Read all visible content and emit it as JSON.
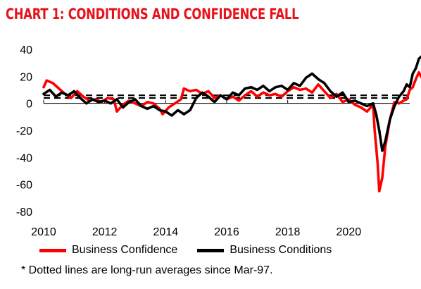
{
  "title": "CHART 1: CONDITIONS AND CONFIDENCE FALL",
  "footnote": "* Dotted lines are long-run averages since Mar-97.",
  "chart_data": {
    "type": "line",
    "title": "CHART 1: CONDITIONS AND CONFIDENCE FALL",
    "xlabel": "",
    "ylabel": "",
    "xlim": [
      2010,
      2022
    ],
    "ylim": [
      -80,
      40
    ],
    "x_ticks": [
      "2010",
      "2012",
      "2014",
      "2016",
      "2018",
      "2020"
    ],
    "y_ticks": [
      "40",
      "20",
      "0",
      "-20",
      "-40",
      "-60",
      "-80"
    ],
    "grid": false,
    "legend_position": "bottom",
    "series": [
      {
        "name": "Business Confidence",
        "color": "#ff0000",
        "points": [
          [
            2010.0,
            12
          ],
          [
            2010.1,
            17
          ],
          [
            2010.3,
            15
          ],
          [
            2010.5,
            11
          ],
          [
            2010.7,
            7
          ],
          [
            2010.9,
            4
          ],
          [
            2011.1,
            9
          ],
          [
            2011.3,
            5
          ],
          [
            2011.5,
            2
          ],
          [
            2011.7,
            3
          ],
          [
            2011.9,
            1
          ],
          [
            2012.1,
            4
          ],
          [
            2012.3,
            3
          ],
          [
            2012.4,
            -6
          ],
          [
            2012.6,
            -1
          ],
          [
            2012.8,
            2
          ],
          [
            2013.0,
            0
          ],
          [
            2013.2,
            -2
          ],
          [
            2013.4,
            1
          ],
          [
            2013.6,
            0
          ],
          [
            2013.8,
            -4
          ],
          [
            2013.9,
            -8
          ],
          [
            2014.1,
            -3
          ],
          [
            2014.3,
            0
          ],
          [
            2014.5,
            3
          ],
          [
            2014.6,
            11
          ],
          [
            2014.8,
            9
          ],
          [
            2015.0,
            10
          ],
          [
            2015.2,
            7
          ],
          [
            2015.4,
            9
          ],
          [
            2015.6,
            4
          ],
          [
            2015.8,
            6
          ],
          [
            2016.0,
            3
          ],
          [
            2016.2,
            5
          ],
          [
            2016.4,
            2
          ],
          [
            2016.6,
            6
          ],
          [
            2016.8,
            9
          ],
          [
            2017.0,
            5
          ],
          [
            2017.2,
            8
          ],
          [
            2017.4,
            6
          ],
          [
            2017.6,
            7
          ],
          [
            2017.8,
            5
          ],
          [
            2018.0,
            9
          ],
          [
            2018.2,
            12
          ],
          [
            2018.4,
            10
          ],
          [
            2018.6,
            11
          ],
          [
            2018.8,
            8
          ],
          [
            2019.0,
            14
          ],
          [
            2019.2,
            9
          ],
          [
            2019.4,
            4
          ],
          [
            2019.6,
            7
          ],
          [
            2019.8,
            1
          ],
          [
            2020.0,
            3
          ],
          [
            2020.2,
            -1
          ],
          [
            2020.4,
            -3
          ],
          [
            2020.6,
            -6
          ],
          [
            2020.8,
            -1
          ],
          [
            2020.85,
            -20
          ],
          [
            2020.95,
            -45
          ],
          [
            2021.0,
            -65
          ],
          [
            2021.1,
            -55
          ],
          [
            2021.2,
            -32
          ],
          [
            2021.35,
            -12
          ],
          [
            2021.5,
            1
          ],
          [
            2021.65,
            0
          ],
          [
            2021.8,
            2
          ],
          [
            2021.9,
            3
          ],
          [
            2022.0,
            10
          ],
          [
            2022.1,
            12
          ],
          [
            2022.2,
            18
          ],
          [
            2022.3,
            23
          ],
          [
            2022.4,
            19
          ],
          [
            2022.5,
            11
          ]
        ]
      },
      {
        "name": "Business Conditions",
        "color": "#000000",
        "points": [
          [
            2010.0,
            7
          ],
          [
            2010.2,
            10
          ],
          [
            2010.4,
            5
          ],
          [
            2010.6,
            8
          ],
          [
            2010.8,
            6
          ],
          [
            2011.0,
            9
          ],
          [
            2011.2,
            4
          ],
          [
            2011.4,
            0
          ],
          [
            2011.6,
            3
          ],
          [
            2011.8,
            1
          ],
          [
            2012.0,
            2
          ],
          [
            2012.2,
            0
          ],
          [
            2012.4,
            3
          ],
          [
            2012.6,
            -3
          ],
          [
            2012.8,
            1
          ],
          [
            2013.0,
            3
          ],
          [
            2013.2,
            -2
          ],
          [
            2013.4,
            -4
          ],
          [
            2013.6,
            -2
          ],
          [
            2013.8,
            -5
          ],
          [
            2014.0,
            -6
          ],
          [
            2014.2,
            -9
          ],
          [
            2014.4,
            -5
          ],
          [
            2014.6,
            -8
          ],
          [
            2014.8,
            -5
          ],
          [
            2015.0,
            4
          ],
          [
            2015.2,
            8
          ],
          [
            2015.4,
            5
          ],
          [
            2015.6,
            1
          ],
          [
            2015.8,
            6
          ],
          [
            2016.0,
            3
          ],
          [
            2016.2,
            8
          ],
          [
            2016.4,
            6
          ],
          [
            2016.6,
            11
          ],
          [
            2016.8,
            12
          ],
          [
            2017.0,
            10
          ],
          [
            2017.2,
            13
          ],
          [
            2017.4,
            9
          ],
          [
            2017.6,
            12
          ],
          [
            2017.8,
            13
          ],
          [
            2018.0,
            10
          ],
          [
            2018.2,
            15
          ],
          [
            2018.4,
            13
          ],
          [
            2018.6,
            19
          ],
          [
            2018.8,
            22
          ],
          [
            2019.0,
            18
          ],
          [
            2019.2,
            15
          ],
          [
            2019.4,
            9
          ],
          [
            2019.6,
            5
          ],
          [
            2019.8,
            8
          ],
          [
            2020.0,
            1
          ],
          [
            2020.2,
            2
          ],
          [
            2020.4,
            0
          ],
          [
            2020.6,
            -2
          ],
          [
            2020.8,
            0
          ],
          [
            2020.9,
            -8
          ],
          [
            2021.0,
            -20
          ],
          [
            2021.1,
            -35
          ],
          [
            2021.2,
            -28
          ],
          [
            2021.35,
            -12
          ],
          [
            2021.5,
            -2
          ],
          [
            2021.65,
            5
          ],
          [
            2021.8,
            9
          ],
          [
            2021.9,
            14
          ],
          [
            2022.0,
            12
          ],
          [
            2022.1,
            22
          ],
          [
            2022.2,
            26
          ],
          [
            2022.3,
            33
          ],
          [
            2022.4,
            35
          ],
          [
            2022.5,
            22
          ]
        ]
      },
      {
        "name": "",
        "color": "#000000",
        "dashed": true,
        "constant": 6
      },
      {
        "name": "",
        "color": "#000000",
        "dashed": true,
        "constant": 4
      }
    ]
  }
}
